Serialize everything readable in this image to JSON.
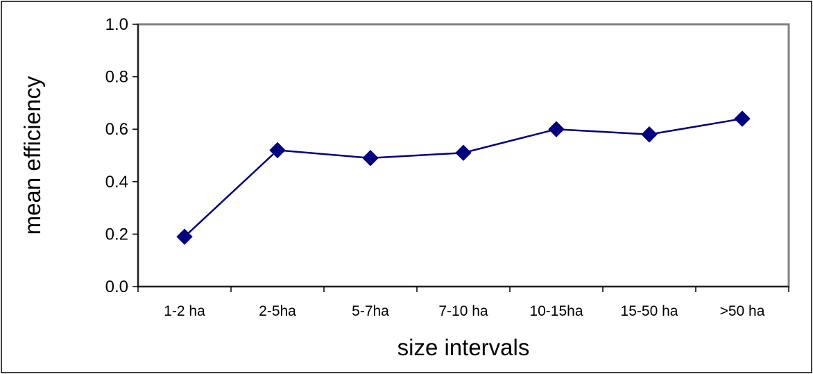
{
  "chart_data": {
    "type": "line",
    "title": "",
    "xlabel": "size intervals",
    "ylabel": "mean efficiency",
    "categories": [
      "1-2 ha",
      "2-5ha",
      "5-7ha",
      "7-10 ha",
      "10-15ha",
      "15-50 ha",
      ">50 ha"
    ],
    "series": [
      {
        "values": [
          0.19,
          0.52,
          0.49,
          0.51,
          0.6,
          0.58,
          0.64
        ]
      }
    ],
    "ylim": [
      0,
      1
    ],
    "yticks": [
      "0.0",
      "0.2",
      "0.4",
      "0.6",
      "0.8",
      "1.0"
    ],
    "grid": false,
    "legend": "none",
    "colors": {
      "series": "#000080",
      "marker": "#000080",
      "plot_border": "#808080",
      "axis": "#000000",
      "background": "#ffffff"
    }
  }
}
